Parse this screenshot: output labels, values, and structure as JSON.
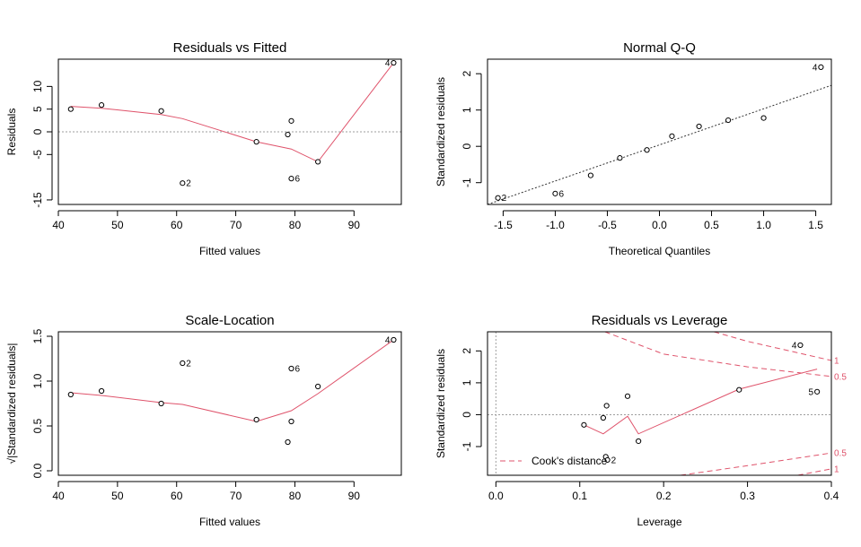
{
  "chart_data": [
    {
      "type": "scatter",
      "title": "Residuals vs Fitted",
      "xlabel": "Fitted values",
      "ylabel": "Residuals",
      "xlim": [
        40,
        98
      ],
      "ylim": [
        -16,
        16
      ],
      "xticks": [
        40,
        50,
        60,
        70,
        80,
        90
      ],
      "yticks": [
        -15,
        -5,
        0,
        5,
        10
      ],
      "ytick_labels": [
        "-15",
        "-5",
        "0",
        "5",
        "10"
      ],
      "points": [
        {
          "x": 42.1,
          "y": 5.0,
          "label": ""
        },
        {
          "x": 47.3,
          "y": 5.9,
          "label": ""
        },
        {
          "x": 57.4,
          "y": 4.6,
          "label": ""
        },
        {
          "x": 61.0,
          "y": -11.3,
          "label": "2"
        },
        {
          "x": 73.5,
          "y": -2.2,
          "label": ""
        },
        {
          "x": 78.8,
          "y": -0.6,
          "label": ""
        },
        {
          "x": 79.4,
          "y": 2.4,
          "label": ""
        },
        {
          "x": 79.4,
          "y": -10.3,
          "label": "6"
        },
        {
          "x": 83.9,
          "y": -6.6,
          "label": ""
        },
        {
          "x": 96.7,
          "y": 15.2,
          "label": "4"
        }
      ],
      "smooth": [
        [
          42.1,
          5.6
        ],
        [
          47.3,
          5.2
        ],
        [
          57.4,
          3.8
        ],
        [
          61.0,
          2.9
        ],
        [
          73.5,
          -2.2
        ],
        [
          79.4,
          -3.8
        ],
        [
          83.9,
          -6.6
        ],
        [
          96.7,
          15.2
        ]
      ],
      "refline": 0,
      "colors": {
        "smooth": "#df536b",
        "ref": "#9e9e9e"
      }
    },
    {
      "type": "scatter",
      "title": "Normal Q-Q",
      "xlabel": "Theoretical Quantiles",
      "ylabel": "Standardized residuals",
      "xlim": [
        -1.65,
        1.65
      ],
      "ylim": [
        -1.6,
        2.4
      ],
      "xticks": [
        -1.5,
        -1.0,
        -0.5,
        0.0,
        0.5,
        1.0,
        1.5
      ],
      "xtick_labels": [
        "-1.5",
        "-1.0",
        "-0.5",
        "0.0",
        "0.5",
        "1.0",
        "1.5"
      ],
      "yticks": [
        -1,
        0,
        1,
        2
      ],
      "ytick_labels": [
        "-1",
        "0",
        "1",
        "2"
      ],
      "points": [
        {
          "x": -1.55,
          "y": -1.42,
          "label": "2"
        },
        {
          "x": -1.0,
          "y": -1.3,
          "label": "6"
        },
        {
          "x": -0.66,
          "y": -0.8,
          "label": ""
        },
        {
          "x": -0.38,
          "y": -0.32,
          "label": ""
        },
        {
          "x": -0.12,
          "y": -0.1,
          "label": ""
        },
        {
          "x": 0.12,
          "y": 0.28,
          "label": ""
        },
        {
          "x": 0.38,
          "y": 0.55,
          "label": ""
        },
        {
          "x": 0.66,
          "y": 0.72,
          "label": ""
        },
        {
          "x": 1.0,
          "y": 0.78,
          "label": ""
        },
        {
          "x": 1.55,
          "y": 2.18,
          "label": "4"
        }
      ],
      "qqline": [
        [
          -1.65,
          -1.6
        ],
        [
          1.65,
          1.68
        ]
      ],
      "colors": {
        "qqline": "#333333"
      }
    },
    {
      "type": "scatter",
      "title": "Scale-Location",
      "xlabel": "Fitted values",
      "ylabel": "√|Standardized residuals|",
      "xlim": [
        40,
        98
      ],
      "ylim": [
        -0.05,
        1.55
      ],
      "xticks": [
        40,
        50,
        60,
        70,
        80,
        90
      ],
      "yticks": [
        0.0,
        0.5,
        1.0,
        1.5
      ],
      "ytick_labels": [
        "0.0",
        "0.5",
        "1.0",
        "1.5"
      ],
      "points": [
        {
          "x": 42.1,
          "y": 0.85,
          "label": ""
        },
        {
          "x": 47.3,
          "y": 0.89,
          "label": ""
        },
        {
          "x": 57.4,
          "y": 0.75,
          "label": ""
        },
        {
          "x": 61.0,
          "y": 1.2,
          "label": "2"
        },
        {
          "x": 73.5,
          "y": 0.57,
          "label": ""
        },
        {
          "x": 78.8,
          "y": 0.32,
          "label": ""
        },
        {
          "x": 79.4,
          "y": 0.55,
          "label": ""
        },
        {
          "x": 79.4,
          "y": 1.14,
          "label": "6"
        },
        {
          "x": 83.9,
          "y": 0.94,
          "label": ""
        },
        {
          "x": 96.7,
          "y": 1.46,
          "label": "4"
        }
      ],
      "smooth": [
        [
          42.1,
          0.87
        ],
        [
          47.3,
          0.84
        ],
        [
          57.4,
          0.76
        ],
        [
          61.0,
          0.74
        ],
        [
          73.5,
          0.55
        ],
        [
          79.4,
          0.67
        ],
        [
          83.9,
          0.86
        ],
        [
          96.7,
          1.46
        ]
      ],
      "colors": {
        "smooth": "#df536b"
      }
    },
    {
      "type": "scatter",
      "title": "Residuals vs Leverage",
      "xlabel": "Leverage",
      "ylabel": "Standardized residuals",
      "xlim": [
        -0.01,
        0.4
      ],
      "ylim": [
        -1.9,
        2.6
      ],
      "xticks": [
        0.0,
        0.1,
        0.2,
        0.3,
        0.4
      ],
      "xtick_labels": [
        "0.0",
        "0.1",
        "0.2",
        "0.3",
        "0.4"
      ],
      "yticks": [
        -1,
        0,
        1,
        2
      ],
      "ytick_labels": [
        "-1",
        "0",
        "1",
        "2"
      ],
      "points": [
        {
          "x": 0.105,
          "y": -0.32,
          "label": ""
        },
        {
          "x": 0.128,
          "y": -0.1,
          "label": ""
        },
        {
          "x": 0.132,
          "y": 0.28,
          "label": ""
        },
        {
          "x": 0.131,
          "y": -1.32,
          "label": ""
        },
        {
          "x": 0.133,
          "y": -1.42,
          "label": "2"
        },
        {
          "x": 0.157,
          "y": 0.58,
          "label": ""
        },
        {
          "x": 0.17,
          "y": -0.83,
          "label": ""
        },
        {
          "x": 0.29,
          "y": 0.78,
          "label": ""
        },
        {
          "x": 0.363,
          "y": 2.18,
          "label": "4"
        },
        {
          "x": 0.383,
          "y": 0.72,
          "label": "5"
        }
      ],
      "smooth": [
        [
          0.105,
          -0.32
        ],
        [
          0.128,
          -0.6
        ],
        [
          0.157,
          -0.05
        ],
        [
          0.17,
          -0.6
        ],
        [
          0.29,
          0.8
        ],
        [
          0.383,
          1.43
        ]
      ],
      "cook_curves": [
        {
          "label": "0.5",
          "sign": 1,
          "pts": [
            [
              0.13,
              2.6
            ],
            [
              0.2,
              1.9
            ],
            [
              0.3,
              1.5
            ],
            [
              0.4,
              1.2
            ]
          ]
        },
        {
          "label": "1",
          "sign": 1,
          "pts": [
            [
              0.26,
              2.6
            ],
            [
              0.3,
              2.3
            ],
            [
              0.35,
              2.0
            ],
            [
              0.4,
              1.7
            ]
          ]
        },
        {
          "label": "0.5",
          "sign": -1,
          "pts": [
            [
              0.22,
              -1.9
            ],
            [
              0.3,
              -1.6
            ],
            [
              0.4,
              -1.2
            ]
          ]
        },
        {
          "label": "1",
          "sign": -1,
          "pts": [
            [
              0.36,
              -1.9
            ],
            [
              0.4,
              -1.7
            ]
          ]
        }
      ],
      "curve_labels": [
        {
          "text": "1",
          "y": 1.7
        },
        {
          "text": "0.5",
          "y": 1.2
        },
        {
          "text": "0.5",
          "y": -1.2
        },
        {
          "text": "1",
          "y": -1.7
        }
      ],
      "legend": "Cook's distance",
      "legend_position": "bottom-left",
      "colors": {
        "smooth": "#df536b",
        "cook": "#df536b",
        "ref": "#9e9e9e"
      }
    }
  ]
}
